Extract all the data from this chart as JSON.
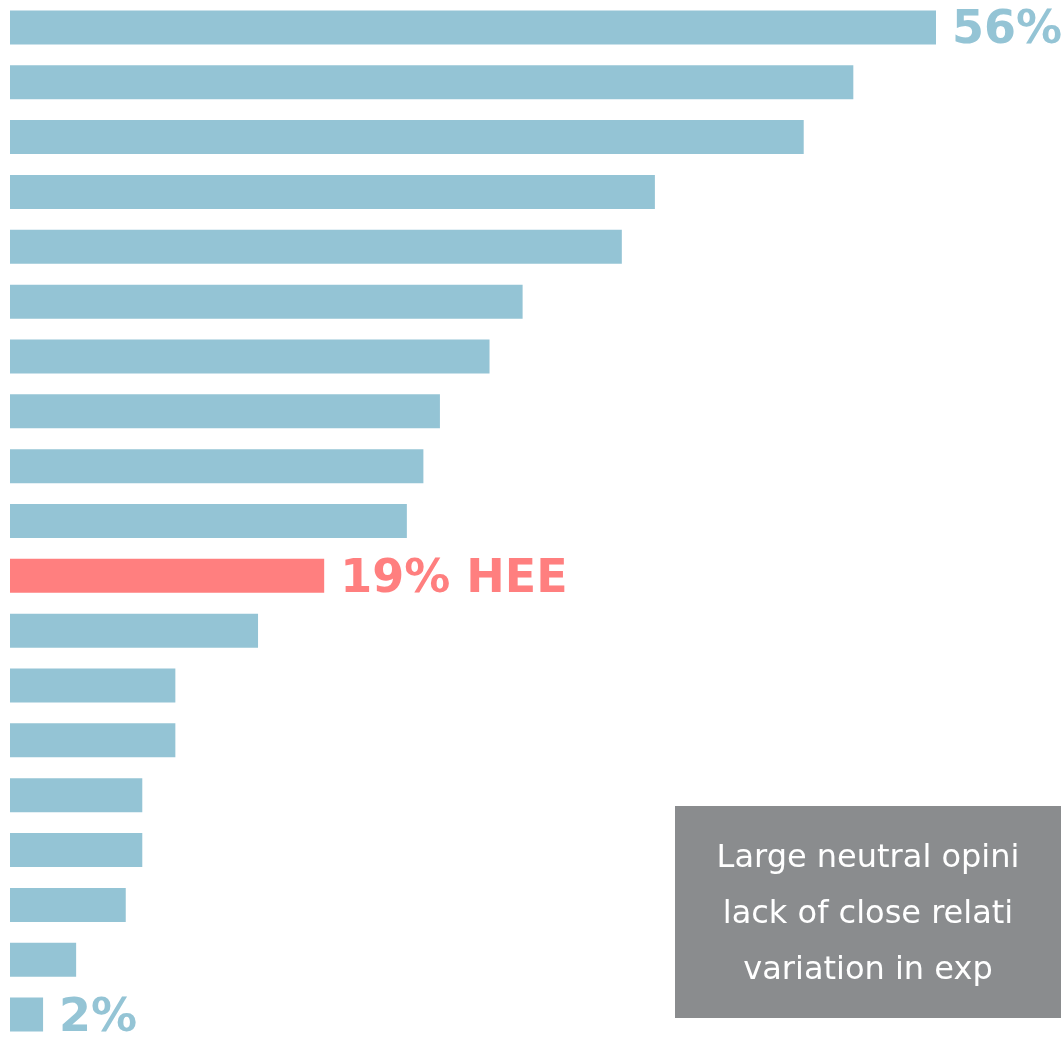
{
  "chart_data": {
    "type": "bar",
    "orientation": "horizontal",
    "categories": [
      null,
      null,
      null,
      null,
      null,
      null,
      null,
      null,
      null,
      null,
      null,
      null,
      null,
      null,
      null,
      null,
      null,
      null,
      null
    ],
    "values": [
      56,
      51,
      48,
      39,
      37,
      31,
      29,
      26,
      25,
      24,
      19,
      15,
      10,
      10,
      8,
      8,
      7,
      4,
      2
    ],
    "colors": [
      "#94c4d5",
      "#94c4d5",
      "#94c4d5",
      "#94c4d5",
      "#94c4d5",
      "#94c4d5",
      "#94c4d5",
      "#94c4d5",
      "#94c4d5",
      "#94c4d5",
      "#ff7f7f",
      "#94c4d5",
      "#94c4d5",
      "#94c4d5",
      "#94c4d5",
      "#94c4d5",
      "#94c4d5",
      "#94c4d5",
      "#94c4d5"
    ],
    "value_labels": [
      "56%",
      null,
      null,
      null,
      null,
      null,
      null,
      null,
      null,
      null,
      "19% HEE",
      null,
      null,
      null,
      null,
      null,
      null,
      null,
      "2%"
    ],
    "annotations": [
      "Large neutral opini\nlack of close relati\nvariation in exp"
    ]
  }
}
